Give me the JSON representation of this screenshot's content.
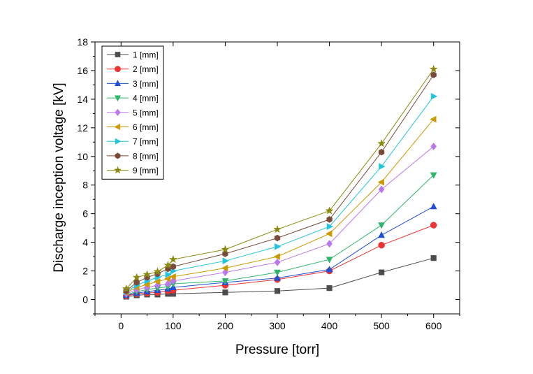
{
  "chart_data": {
    "type": "line",
    "xlabel": "Pressure [torr]",
    "ylabel": "Discharge inception voltage [kV]",
    "xlim": [
      -50,
      650
    ],
    "ylim": [
      -1,
      18
    ],
    "x_ticks": [
      0,
      100,
      200,
      300,
      400,
      500,
      600
    ],
    "y_ticks": [
      0,
      2,
      4,
      6,
      8,
      10,
      12,
      14,
      16,
      18
    ],
    "legend_position": "top-left",
    "grid": false,
    "x": [
      10,
      30,
      50,
      70,
      90,
      100,
      200,
      300,
      400,
      500,
      600
    ],
    "series": [
      {
        "name": "1 [mm]",
        "color": "#4d4d4d",
        "marker": "square",
        "values": [
          0.2,
          0.3,
          0.35,
          0.35,
          0.4,
          0.4,
          0.5,
          0.6,
          0.8,
          1.9,
          2.9
        ]
      },
      {
        "name": "2 [mm]",
        "color": "#ee3333",
        "marker": "circle",
        "values": [
          0.25,
          0.4,
          0.45,
          0.5,
          0.6,
          0.65,
          1.0,
          1.4,
          2.0,
          3.8,
          5.2
        ]
      },
      {
        "name": "3 [mm]",
        "color": "#1f4fd6",
        "marker": "triangle-up",
        "values": [
          0.3,
          0.45,
          0.55,
          0.65,
          0.75,
          0.85,
          1.2,
          1.5,
          2.1,
          4.5,
          6.5
        ]
      },
      {
        "name": "4 [mm]",
        "color": "#2fb56a",
        "marker": "triangle-down",
        "values": [
          0.35,
          0.55,
          0.7,
          0.8,
          0.9,
          1.1,
          1.3,
          1.9,
          2.8,
          5.2,
          8.7
        ]
      },
      {
        "name": "5 [mm]",
        "color": "#bb77ee",
        "marker": "diamond",
        "values": [
          0.4,
          0.7,
          0.85,
          1.0,
          1.1,
          1.3,
          1.9,
          2.6,
          3.9,
          7.7,
          10.7
        ]
      },
      {
        "name": "6 [mm]",
        "color": "#cc9900",
        "marker": "triangle-left",
        "values": [
          0.5,
          0.85,
          1.05,
          1.25,
          1.45,
          1.6,
          2.2,
          3.0,
          4.6,
          8.2,
          12.6
        ]
      },
      {
        "name": "7 [mm]",
        "color": "#22c4de",
        "marker": "triangle-right",
        "values": [
          0.55,
          1.0,
          1.3,
          1.55,
          1.75,
          2.0,
          2.7,
          3.7,
          5.1,
          9.3,
          14.2
        ]
      },
      {
        "name": "8 [mm]",
        "color": "#7a4a3a",
        "marker": "hexagon",
        "values": [
          0.6,
          1.2,
          1.55,
          1.8,
          2.15,
          2.3,
          3.2,
          4.3,
          5.6,
          10.3,
          15.7
        ]
      },
      {
        "name": "9 [mm]",
        "color": "#8a8a10",
        "marker": "star",
        "values": [
          0.75,
          1.55,
          1.75,
          1.95,
          2.4,
          2.8,
          3.5,
          4.9,
          6.2,
          10.9,
          16.1
        ]
      }
    ]
  }
}
